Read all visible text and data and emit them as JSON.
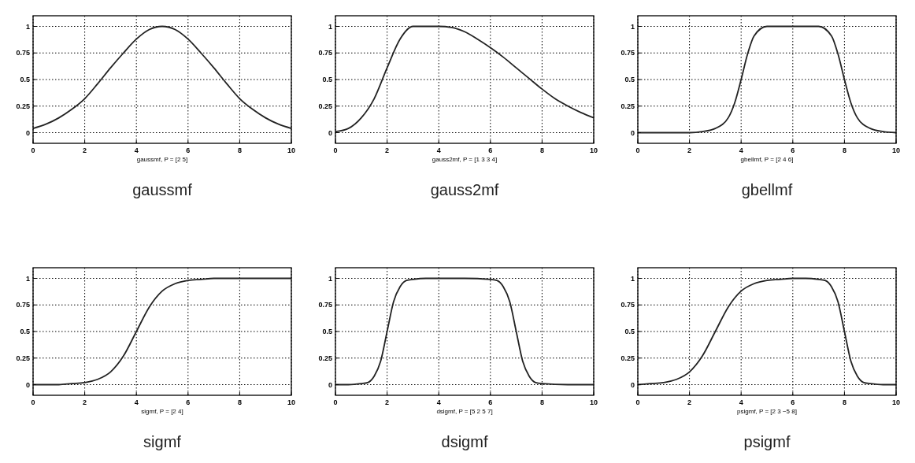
{
  "chart_data": [
    {
      "type": "line",
      "title": "gaussmf",
      "xlabel": "gaussmf, P = [2 5]",
      "x": [
        0,
        0.5,
        1,
        1.5,
        2,
        2.5,
        3,
        3.5,
        4,
        4.5,
        5,
        5.5,
        6,
        6.5,
        7,
        7.5,
        8,
        8.5,
        9,
        9.5,
        10
      ],
      "series": [
        {
          "color": "#222222",
          "values": [
            0.04,
            0.08,
            0.14,
            0.22,
            0.32,
            0.46,
            0.61,
            0.75,
            0.88,
            0.97,
            1,
            0.97,
            0.88,
            0.75,
            0.61,
            0.46,
            0.32,
            0.22,
            0.14,
            0.08,
            0.04
          ]
        }
      ],
      "xlim": [
        0,
        10
      ],
      "ylim": [
        -0.1,
        1.1
      ],
      "xticks": [
        0,
        2,
        4,
        6,
        8,
        10
      ],
      "yticks": [
        0,
        0.25,
        0.5,
        0.75,
        1
      ],
      "grid": true
    },
    {
      "type": "line",
      "title": "gauss2mf",
      "xlabel": "gauss2mf, P = [1 3 3 4]",
      "x": [
        0,
        0.5,
        1,
        1.5,
        2,
        2.5,
        3,
        3.5,
        4,
        4.5,
        5,
        5.5,
        6,
        6.5,
        7,
        7.5,
        8,
        8.5,
        9,
        9.5,
        10
      ],
      "series": [
        {
          "color": "#222222",
          "values": [
            0.01,
            0.04,
            0.14,
            0.32,
            0.61,
            0.88,
            1,
            1,
            1,
            0.99,
            0.95,
            0.88,
            0.8,
            0.71,
            0.61,
            0.51,
            0.41,
            0.32,
            0.25,
            0.19,
            0.14
          ]
        }
      ],
      "xlim": [
        0,
        10
      ],
      "ylim": [
        -0.1,
        1.1
      ],
      "xticks": [
        0,
        2,
        4,
        6,
        8,
        10
      ],
      "yticks": [
        0,
        0.25,
        0.5,
        0.75,
        1
      ],
      "grid": true
    },
    {
      "type": "line",
      "title": "gbellmf",
      "xlabel": "gbellmf, P = [2 4 6]",
      "x": [
        0,
        1,
        2,
        2.5,
        3,
        3.5,
        3.75,
        4,
        4.25,
        4.5,
        5,
        5.5,
        6,
        6.5,
        7,
        7.5,
        7.75,
        8,
        8.25,
        8.5,
        9,
        9.5,
        10
      ],
      "series": [
        {
          "color": "#222222",
          "values": [
            0,
            0,
            0,
            0.01,
            0.04,
            0.14,
            0.28,
            0.5,
            0.74,
            0.91,
            1,
            1,
            1,
            1,
            1,
            0.91,
            0.74,
            0.5,
            0.28,
            0.14,
            0.04,
            0.01,
            0
          ]
        }
      ],
      "xlim": [
        0,
        10
      ],
      "ylim": [
        -0.1,
        1.1
      ],
      "xticks": [
        0,
        2,
        4,
        6,
        8,
        10
      ],
      "yticks": [
        0,
        0.25,
        0.5,
        0.75,
        1
      ],
      "grid": true
    },
    {
      "type": "line",
      "title": "sigmf",
      "xlabel": "sigmf, P = [2 4]",
      "x": [
        0,
        0.5,
        1,
        1.5,
        2,
        2.5,
        3,
        3.5,
        4,
        4.5,
        5,
        5.5,
        6,
        6.5,
        7,
        8,
        9,
        10
      ],
      "series": [
        {
          "color": "#222222",
          "values": [
            0,
            0,
            0,
            0.01,
            0.02,
            0.05,
            0.12,
            0.27,
            0.5,
            0.73,
            0.88,
            0.95,
            0.98,
            0.99,
            1,
            1,
            1,
            1
          ]
        }
      ],
      "xlim": [
        0,
        10
      ],
      "ylim": [
        -0.1,
        1.1
      ],
      "xticks": [
        0,
        2,
        4,
        6,
        8,
        10
      ],
      "yticks": [
        0,
        0.25,
        0.5,
        0.75,
        1
      ],
      "grid": true
    },
    {
      "type": "line",
      "title": "dsigmf",
      "xlabel": "dsigmf, P = [5 2 5 7]",
      "x": [
        0,
        0.5,
        1,
        1.25,
        1.5,
        1.75,
        2,
        2.25,
        2.5,
        2.75,
        3,
        3.5,
        4,
        5,
        6,
        6.25,
        6.5,
        6.75,
        7,
        7.25,
        7.5,
        7.75,
        8,
        9,
        10
      ],
      "series": [
        {
          "color": "#222222",
          "values": [
            0,
            0,
            0.01,
            0.02,
            0.08,
            0.22,
            0.5,
            0.78,
            0.92,
            0.98,
            0.99,
            1,
            1,
            1,
            0.99,
            0.98,
            0.92,
            0.78,
            0.5,
            0.22,
            0.08,
            0.02,
            0.01,
            0,
            0
          ]
        }
      ],
      "xlim": [
        0,
        10
      ],
      "ylim": [
        -0.1,
        1.1
      ],
      "xticks": [
        0,
        2,
        4,
        6,
        8,
        10
      ],
      "yticks": [
        0,
        0.25,
        0.5,
        0.75,
        1
      ],
      "grid": true
    },
    {
      "type": "line",
      "title": "psigmf",
      "xlabel": "psigmf, P = [2 3 −5 8]",
      "x": [
        0,
        0.5,
        1,
        1.5,
        2,
        2.5,
        3,
        3.5,
        4,
        4.5,
        5,
        5.5,
        6,
        6.5,
        7,
        7.25,
        7.5,
        7.75,
        8,
        8.25,
        8.5,
        8.75,
        9,
        9.5,
        10
      ],
      "series": [
        {
          "color": "#222222",
          "values": [
            0,
            0.01,
            0.02,
            0.05,
            0.12,
            0.27,
            0.5,
            0.73,
            0.88,
            0.95,
            0.98,
            0.99,
            1,
            1,
            0.99,
            0.98,
            0.92,
            0.78,
            0.5,
            0.22,
            0.08,
            0.02,
            0.01,
            0,
            0
          ]
        }
      ],
      "xlim": [
        0,
        10
      ],
      "ylim": [
        -0.1,
        1.1
      ],
      "xticks": [
        0,
        2,
        4,
        6,
        8,
        10
      ],
      "yticks": [
        0,
        0.25,
        0.5,
        0.75,
        1
      ],
      "grid": true
    }
  ]
}
